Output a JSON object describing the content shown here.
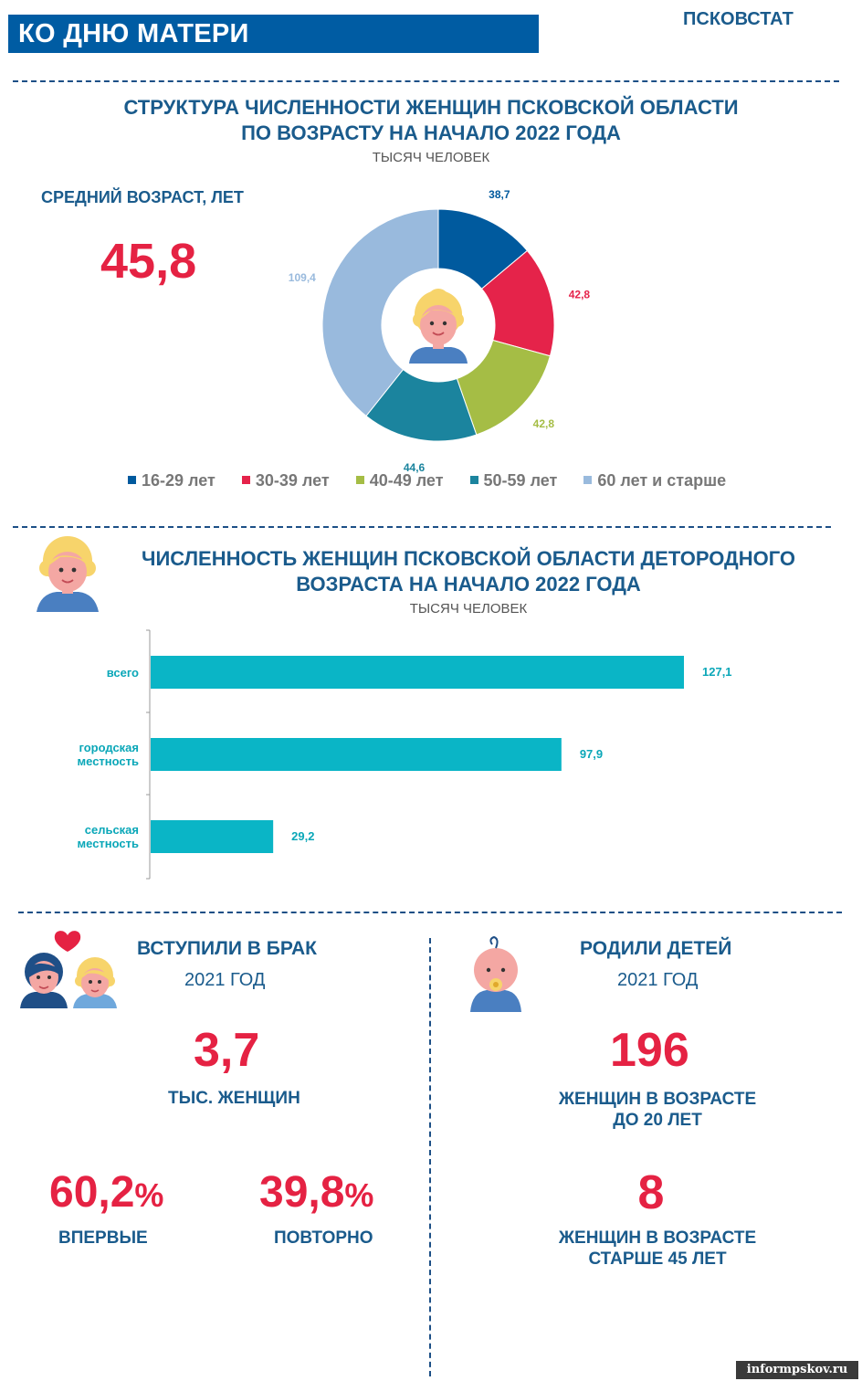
{
  "header": {
    "title": "КО ДНЮ МАТЕРИ",
    "brand": "ПСКОВСТАТ"
  },
  "section1": {
    "title_line1": "СТРУКТУРА ЧИСЛЕННОСТИ ЖЕНЩИН ПСКОВСКОЙ ОБЛАСТИ",
    "title_line2": "ПО ВОЗРАСТУ НА НАЧАЛО 2022 ГОДА",
    "units": "ТЫСЯЧ ЧЕЛОВЕК",
    "avg_age_label": "СРЕДНИЙ ВОЗРАСТ, ЛЕТ",
    "avg_age_value": "45,8"
  },
  "section2": {
    "title_line1": "ЧИСЛЕННОСТЬ ЖЕНЩИН ПСКОВСКОЙ ОБЛАСТИ ДЕТОРОДНОГО",
    "title_line2": "ВОЗРАСТА НА НАЧАЛО 2022 ГОДА",
    "units": "ТЫСЯЧ ЧЕЛОВЕК"
  },
  "marriage": {
    "title": "ВСТУПИЛИ В БРАК",
    "year": "2021 ГОД",
    "value": "3,7",
    "unit": "ТЫС. ЖЕНЩИН",
    "first_value": "60,2",
    "first_label": "ВПЕРВЫЕ",
    "repeat_value": "39,8",
    "repeat_label": "ПОВТОРНО",
    "percent": "%"
  },
  "births": {
    "title": "РОДИЛИ ДЕТЕЙ",
    "year": "2021 ГОД",
    "value1": "196",
    "label1_line1": "ЖЕНЩИН В ВОЗРАСТЕ",
    "label1_line2": "ДО 20 ЛЕТ",
    "value2": "8",
    "label2_line1": "ЖЕНЩИН В ВОЗРАСТЕ",
    "label2_line2": "СТАРШЕ 45 ЛЕТ"
  },
  "watermark": "informpskov.ru",
  "colors": {
    "navy": "#1a5b8c",
    "red": "#e52243",
    "teal": "#0ab5c6",
    "header": "#005ca3"
  },
  "icons": [
    "woman-face-icon",
    "couple-heart-icon",
    "baby-icon"
  ],
  "chart_data": [
    {
      "type": "pie",
      "variant": "donut",
      "categories": [
        "16-29 лет",
        "30-39 лет",
        "40-49 лет",
        "50-59 лет",
        "60 лет и старше"
      ],
      "values": [
        38.7,
        42.8,
        42.8,
        44.6,
        109.4
      ],
      "labels": [
        "38,7",
        "42,8",
        "42,8",
        "44,6",
        "109,4"
      ],
      "colors": [
        "#005a9e",
        "#e5234a",
        "#a5bd45",
        "#1b849e",
        "#99badd"
      ],
      "legend": "bottom"
    },
    {
      "type": "bar",
      "orientation": "horizontal",
      "categories": [
        "всего",
        "городская местность",
        "сельская местность"
      ],
      "values": [
        127.1,
        97.9,
        29.2
      ],
      "labels": [
        "127,1",
        "97,9",
        "29,2"
      ],
      "color": "#0ab5c6",
      "xlim": [
        0,
        127.1
      ]
    }
  ]
}
